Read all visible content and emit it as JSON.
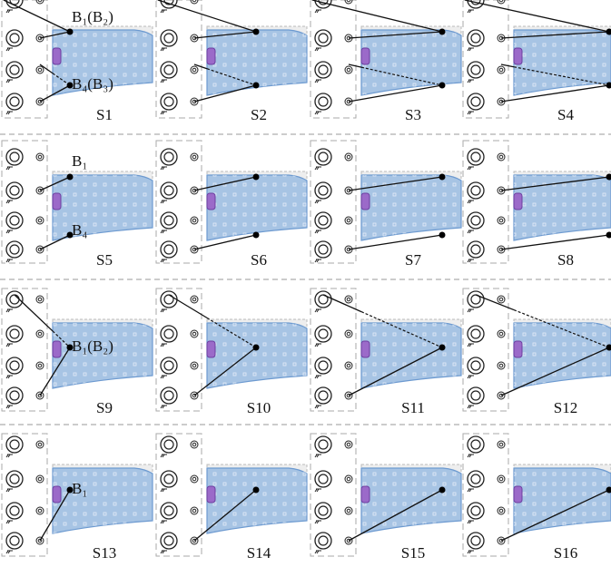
{
  "panels": [
    {
      "label": "S1",
      "annotations": [
        "B₁(B₂)",
        "B₄(B₃)"
      ]
    },
    {
      "label": "S2"
    },
    {
      "label": "S3"
    },
    {
      "label": "S4"
    },
    {
      "label": "S5",
      "annotations": [
        "B₁",
        "B₄"
      ]
    },
    {
      "label": "S6"
    },
    {
      "label": "S7"
    },
    {
      "label": "S8"
    },
    {
      "label": "S9",
      "annotations": [
        "B₁(B₂)"
      ]
    },
    {
      "label": "S10"
    },
    {
      "label": "S11"
    },
    {
      "label": "S12"
    },
    {
      "label": "S13",
      "annotations": [
        "B₁"
      ]
    },
    {
      "label": "S14"
    },
    {
      "label": "S15"
    },
    {
      "label": "S16"
    }
  ]
}
